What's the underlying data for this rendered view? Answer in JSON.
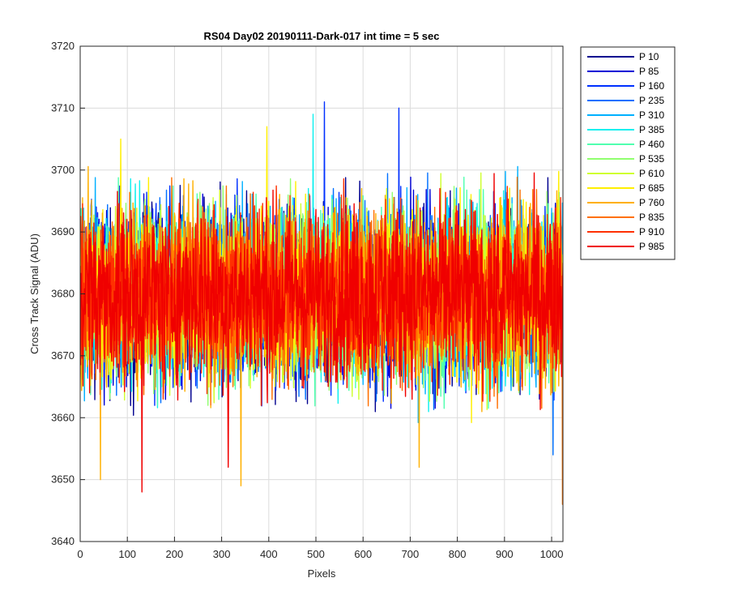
{
  "chart_data": {
    "type": "line",
    "title": "RS04 Day02 20190111-Dark-017 int time = 5 sec",
    "xlabel": "Pixels",
    "ylabel": "Cross Track Signal (ADU)",
    "xlim": [
      0,
      1024
    ],
    "ylim": [
      3640,
      3720
    ],
    "xticks": [
      0,
      100,
      200,
      300,
      400,
      500,
      600,
      700,
      800,
      900,
      1000
    ],
    "yticks": [
      3640,
      3650,
      3660,
      3670,
      3680,
      3690,
      3700,
      3710,
      3720
    ],
    "grid": true,
    "legend_position": "outside-top-right",
    "n_points": 1024,
    "series_mean": 3680,
    "series_spread": 7,
    "series": [
      {
        "name": "P 10",
        "color": "#00008f",
        "mean": 3680,
        "spread": 7
      },
      {
        "name": "P 85",
        "color": "#0000d6",
        "mean": 3680,
        "spread": 7
      },
      {
        "name": "P 160",
        "color": "#0030ff",
        "mean": 3680,
        "spread": 7
      },
      {
        "name": "P 235",
        "color": "#0070ff",
        "mean": 3680,
        "spread": 7
      },
      {
        "name": "P 310",
        "color": "#00b0ff",
        "mean": 3680,
        "spread": 7
      },
      {
        "name": "P 385",
        "color": "#10f0ef",
        "mean": 3680,
        "spread": 7
      },
      {
        "name": "P 460",
        "color": "#50ffaf",
        "mean": 3680,
        "spread": 7
      },
      {
        "name": "P 535",
        "color": "#90ff6f",
        "mean": 3680,
        "spread": 7
      },
      {
        "name": "P 610",
        "color": "#cfff30",
        "mean": 3680,
        "spread": 7
      },
      {
        "name": "P 685",
        "color": "#ffef00",
        "mean": 3680,
        "spread": 7
      },
      {
        "name": "P 760",
        "color": "#ffb000",
        "mean": 3680,
        "spread": 7
      },
      {
        "name": "P 835",
        "color": "#ff7000",
        "mean": 3680,
        "spread": 7
      },
      {
        "name": "P 910",
        "color": "#ff3000",
        "mean": 3680,
        "spread": 7
      },
      {
        "name": "P 985",
        "color": "#f00000",
        "mean": 3680,
        "spread": 7
      }
    ],
    "spikes": [
      {
        "x": 517,
        "y": 3711,
        "series": "P 160"
      },
      {
        "x": 675,
        "y": 3710,
        "series": "P 160"
      },
      {
        "x": 493,
        "y": 3709,
        "series": "P 385"
      },
      {
        "x": 130,
        "y": 3648,
        "series": "P 985"
      },
      {
        "x": 340,
        "y": 3649,
        "series": "P 760"
      },
      {
        "x": 42,
        "y": 3650,
        "series": "P 760"
      },
      {
        "x": 1022,
        "y": 3646,
        "series": "P 835"
      },
      {
        "x": 313,
        "y": 3652,
        "series": "P 985"
      },
      {
        "x": 718,
        "y": 3652,
        "series": "P 760"
      },
      {
        "x": 1002,
        "y": 3654,
        "series": "P 235"
      },
      {
        "x": 85,
        "y": 3705,
        "series": "P 685"
      },
      {
        "x": 395,
        "y": 3707,
        "series": "P 685"
      }
    ]
  }
}
